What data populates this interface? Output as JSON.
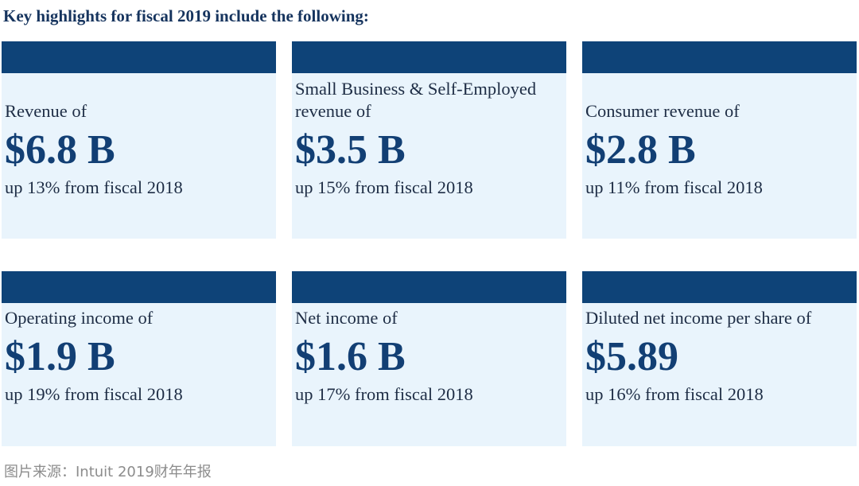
{
  "heading": "Key highlights for fiscal 2019 include the following:",
  "highlights": [
    {
      "label": "Revenue of",
      "value": "$6.8 B",
      "change": "up 13% from fiscal 2018"
    },
    {
      "label": "Small Business & Self-Employed revenue of",
      "value": "$3.5 B",
      "change": "up 15% from fiscal 2018"
    },
    {
      "label": "Consumer revenue of",
      "value": "$2.8 B",
      "change": "up 11% from fiscal 2018"
    },
    {
      "label": "Operating income of",
      "value": "$1.9 B",
      "change": "up 19% from fiscal 2018"
    },
    {
      "label": "Net income of",
      "value": "$1.6 B",
      "change": "up 17% from fiscal 2018"
    },
    {
      "label": "Diluted net income per share of",
      "value": "$5.89",
      "change": "up 16% from fiscal 2018"
    }
  ],
  "source": "图片来源：Intuit 2019财年年报",
  "colors": {
    "bar": "#0e4378",
    "card_background": "#e9f4fc",
    "value_text": "#123f74",
    "heading_text": "#16345e",
    "source_text": "#8c8c8c"
  }
}
